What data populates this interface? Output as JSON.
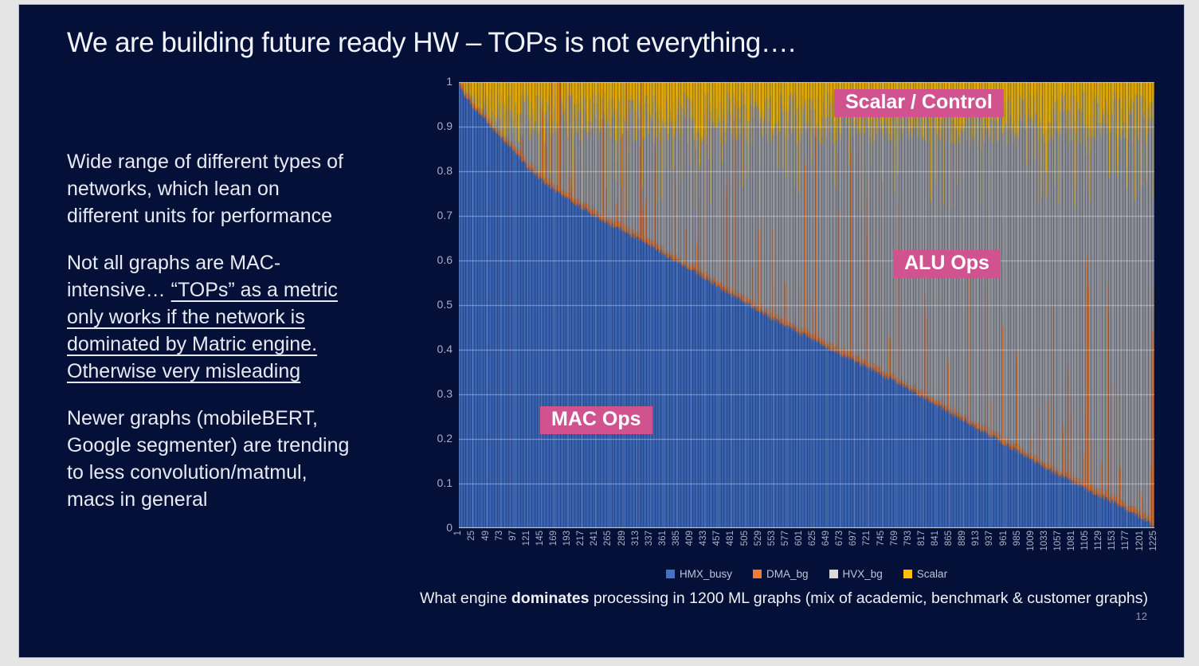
{
  "slide": {
    "title": "We are building future ready HW – TOPs is not everything….",
    "page_number": "12",
    "colors": {
      "background": "#041038",
      "surround": "#e5e5e5",
      "text": "#e7eaf3",
      "accent_pink": "#d0538f"
    }
  },
  "left_text": {
    "para1": [
      "Wide range of different types of",
      "networks, which lean on",
      "different units for performance"
    ],
    "para2_line1": "Not all graphs are MAC-",
    "para2_line2_normal": "intensive… ",
    "para2_line2_underline": "“TOPs” as a metric",
    "para2_line3": "only works if the network is",
    "para2_line4": "dominated by Matric engine.",
    "para2_line5": "Otherwise very misleading",
    "para3": [
      "Newer graphs (mobileBERT,",
      "Google segmenter) are trending",
      "to less convolution/matmul,",
      "macs in general"
    ]
  },
  "caption": {
    "prefix": "What engine ",
    "bold": "dominates",
    "suffix": " processing in 1200 ML graphs (mix of academic, benchmark & customer graphs)"
  },
  "chart_data": {
    "type": "bar",
    "stacked": true,
    "normalized_to_1": true,
    "n_bars": 1225,
    "title": "",
    "xlabel": "",
    "ylabel": "",
    "ylim": [
      0,
      1
    ],
    "grid": true,
    "y_tick_labels": [
      "0",
      "0.1",
      "0.2",
      "0.3",
      "0.4",
      "0.5",
      "0.6",
      "0.7",
      "0.8",
      "0.9",
      "1"
    ],
    "x_tick_labels": [
      "1",
      "25",
      "49",
      "73",
      "97",
      "121",
      "145",
      "169",
      "193",
      "217",
      "241",
      "265",
      "289",
      "313",
      "337",
      "361",
      "385",
      "409",
      "433",
      "457",
      "481",
      "505",
      "529",
      "553",
      "577",
      "601",
      "625",
      "649",
      "673",
      "697",
      "721",
      "745",
      "769",
      "793",
      "817",
      "841",
      "865",
      "889",
      "913",
      "937",
      "961",
      "985",
      "1009",
      "1033",
      "1057",
      "1081",
      "1105",
      "1129",
      "1153",
      "1177",
      "1201",
      "1225"
    ],
    "legend_position": "bottom",
    "legend": [
      {
        "label": "HMX_busy",
        "color": "#4472c4",
        "swatch": "#4472c4"
      },
      {
        "label": "DMA_bg",
        "color": "#ed7d31",
        "swatch": "#ed7d31"
      },
      {
        "label": "HVX_bg",
        "color": "#a5a5a5",
        "swatch": "#d9d9d9"
      },
      {
        "label": "Scalar",
        "color": "#ffc000",
        "swatch": "#ffc000"
      }
    ],
    "series_model": {
      "description": "1225 stacked bars (one per ML graph), each summing to 1.0, sorted by descending HMX_busy share. DMA_bg is a thin band with sporadic tall spikes; Scalar occupies the top 2–25%; HVX_bg fills the remainder.",
      "hmx_busy_envelope": [
        [
          0,
          0.995
        ],
        [
          0.008,
          0.97
        ],
        [
          0.02,
          0.945
        ],
        [
          0.04,
          0.91
        ],
        [
          0.06,
          0.875
        ],
        [
          0.08,
          0.845
        ],
        [
          0.1,
          0.805
        ],
        [
          0.13,
          0.765
        ],
        [
          0.16,
          0.735
        ],
        [
          0.2,
          0.695
        ],
        [
          0.25,
          0.655
        ],
        [
          0.3,
          0.61
        ],
        [
          0.35,
          0.565
        ],
        [
          0.4,
          0.515
        ],
        [
          0.45,
          0.47
        ],
        [
          0.5,
          0.43
        ],
        [
          0.55,
          0.39
        ],
        [
          0.6,
          0.35
        ],
        [
          0.65,
          0.31
        ],
        [
          0.7,
          0.265
        ],
        [
          0.75,
          0.22
        ],
        [
          0.8,
          0.175
        ],
        [
          0.85,
          0.13
        ],
        [
          0.9,
          0.09
        ],
        [
          0.95,
          0.05
        ],
        [
          0.975,
          0.03
        ],
        [
          0.99,
          0.015
        ],
        [
          1,
          0.005
        ]
      ],
      "dma_bg": {
        "base_range": [
          0.004,
          0.016
        ],
        "spike_probability": 0.055,
        "spike_range": [
          0.05,
          0.5
        ]
      },
      "scalar": {
        "base_range": [
          0.02,
          0.14
        ],
        "tall_probability": 0.08,
        "tall_range": [
          0.12,
          0.3
        ]
      }
    },
    "annotations": [
      {
        "label": "Scalar / Control"
      },
      {
        "label": "ALU Ops"
      },
      {
        "label": "MAC Ops"
      }
    ]
  }
}
